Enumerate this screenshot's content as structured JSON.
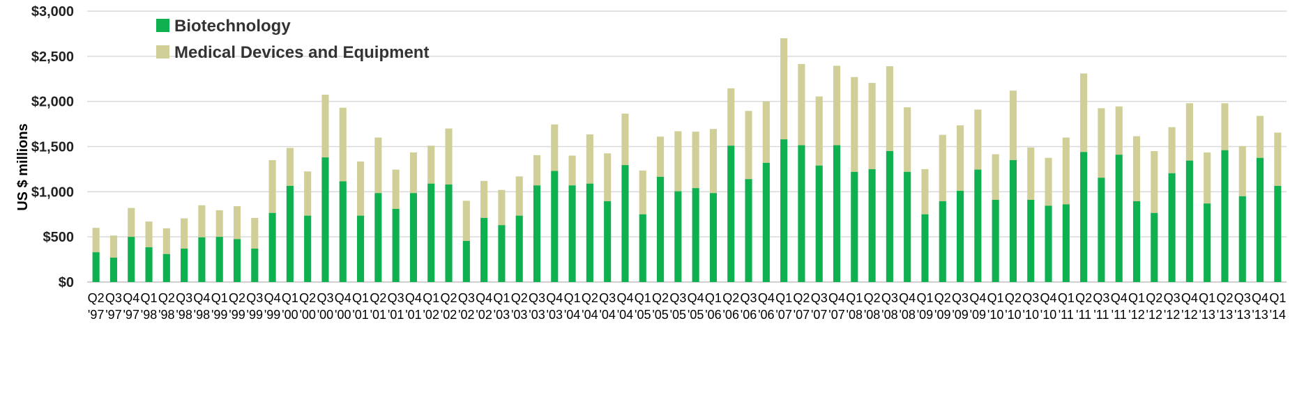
{
  "chart_data": {
    "type": "bar",
    "stacked": true,
    "ylabel": "US $ millions",
    "ylim": [
      0,
      3000
    ],
    "y_ticks": [
      "$0",
      "$500",
      "$1,000",
      "$1,500",
      "$2,000",
      "$2,500",
      "$3,000"
    ],
    "grid": true,
    "legend_position": "top-left",
    "categories": [
      [
        "Q2",
        "'97"
      ],
      [
        "Q3",
        "'97"
      ],
      [
        "Q4",
        "'97"
      ],
      [
        "Q1",
        "'98"
      ],
      [
        "Q2",
        "'98"
      ],
      [
        "Q3",
        "'98"
      ],
      [
        "Q4",
        "'98"
      ],
      [
        "Q1",
        "'99"
      ],
      [
        "Q2",
        "'99"
      ],
      [
        "Q3",
        "'99"
      ],
      [
        "Q4",
        "'99"
      ],
      [
        "Q1",
        "'00"
      ],
      [
        "Q2",
        "'00"
      ],
      [
        "Q3",
        "'00"
      ],
      [
        "Q4",
        "'00"
      ],
      [
        "Q1",
        "'01"
      ],
      [
        "Q2",
        "'01"
      ],
      [
        "Q3",
        "'01"
      ],
      [
        "Q4",
        "'01"
      ],
      [
        "Q1",
        "'02"
      ],
      [
        "Q2",
        "'02"
      ],
      [
        "Q3",
        "'02"
      ],
      [
        "Q4",
        "'02"
      ],
      [
        "Q1",
        "'03"
      ],
      [
        "Q2",
        "'03"
      ],
      [
        "Q3",
        "'03"
      ],
      [
        "Q4",
        "'03"
      ],
      [
        "Q1",
        "'04"
      ],
      [
        "Q2",
        "'04"
      ],
      [
        "Q3",
        "'04"
      ],
      [
        "Q4",
        "'04"
      ],
      [
        "Q1",
        "'05"
      ],
      [
        "Q2",
        "'05"
      ],
      [
        "Q3",
        "'05"
      ],
      [
        "Q4",
        "'05"
      ],
      [
        "Q1",
        "'06"
      ],
      [
        "Q2",
        "'06"
      ],
      [
        "Q3",
        "'06"
      ],
      [
        "Q4",
        "'06"
      ],
      [
        "Q1",
        "'07"
      ],
      [
        "Q2",
        "'07"
      ],
      [
        "Q3",
        "'07"
      ],
      [
        "Q4",
        "'07"
      ],
      [
        "Q1",
        "'08"
      ],
      [
        "Q2",
        "'08"
      ],
      [
        "Q3",
        "'08"
      ],
      [
        "Q4",
        "'08"
      ],
      [
        "Q1",
        "'09"
      ],
      [
        "Q2",
        "'09"
      ],
      [
        "Q3",
        "'09"
      ],
      [
        "Q4",
        "'09"
      ],
      [
        "Q1",
        "'10"
      ],
      [
        "Q2",
        "'10"
      ],
      [
        "Q3",
        "'10"
      ],
      [
        "Q4",
        "'10"
      ],
      [
        "Q1",
        "'11"
      ],
      [
        "Q2",
        "'11"
      ],
      [
        "Q3",
        "'11"
      ],
      [
        "Q4",
        "'11"
      ],
      [
        "Q1",
        "'12"
      ],
      [
        "Q2",
        "'12"
      ],
      [
        "Q3",
        "'12"
      ],
      [
        "Q4",
        "'12"
      ],
      [
        "Q1",
        "'13"
      ],
      [
        "Q2",
        "'13"
      ],
      [
        "Q3",
        "'13"
      ],
      [
        "Q4",
        "'13"
      ],
      [
        "Q1",
        "'14"
      ]
    ],
    "series": [
      {
        "name": "Biotechnology",
        "color": "#0fb04f",
        "values": [
          330,
          270,
          500,
          385,
          310,
          370,
          495,
          500,
          475,
          370,
          765,
          1065,
          735,
          1380,
          1115,
          735,
          985,
          810,
          985,
          1090,
          1080,
          455,
          710,
          630,
          735,
          1070,
          1230,
          1070,
          1090,
          895,
          1295,
          750,
          1165,
          1005,
          1040,
          985,
          1510,
          1140,
          1320,
          1580,
          1515,
          1290,
          1515,
          1220,
          1250,
          1450,
          1220,
          750,
          895,
          1010,
          1245,
          910,
          1350,
          910,
          845,
          860,
          1440,
          1155,
          1410,
          895,
          765,
          1205,
          1345,
          870,
          1460,
          950,
          1375,
          1065
        ]
      },
      {
        "name": "Medical Devices and Equipment",
        "color": "#d0cf97",
        "values": [
          270,
          245,
          320,
          285,
          285,
          335,
          355,
          295,
          365,
          340,
          585,
          420,
          490,
          695,
          815,
          600,
          615,
          435,
          450,
          420,
          620,
          445,
          410,
          390,
          435,
          335,
          515,
          330,
          545,
          530,
          570,
          485,
          445,
          665,
          625,
          710,
          635,
          755,
          680,
          1120,
          900,
          765,
          880,
          1050,
          955,
          940,
          715,
          500,
          735,
          725,
          665,
          505,
          770,
          580,
          530,
          740,
          870,
          770,
          535,
          720,
          685,
          510,
          635,
          565,
          520,
          555,
          465,
          590
        ]
      }
    ]
  }
}
